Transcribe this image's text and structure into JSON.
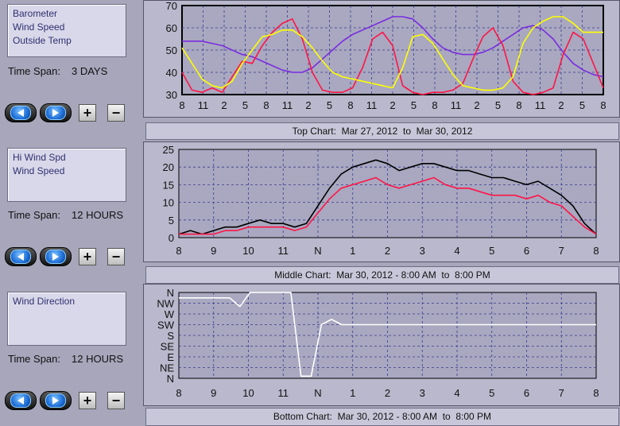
{
  "top": {
    "legend": [
      "Barometer",
      "Wind Speed",
      "Outside Temp"
    ],
    "timespan_label": "Time Span:",
    "timespan_value": "3 DAYS",
    "caption": "Top Chart:  Mar 27, 2012  to  Mar 30, 2012",
    "plus": "+",
    "minus": "−"
  },
  "middle": {
    "legend": [
      "Hi Wind Spd",
      "Wind Speed"
    ],
    "timespan_label": "Time Span:",
    "timespan_value": "12 HOURS",
    "caption": "Middle Chart:  Mar 30, 2012 - 8:00 AM  to  8:00 PM",
    "plus": "+",
    "minus": "−"
  },
  "bottom": {
    "legend": [
      "Wind Direction"
    ],
    "timespan_label": "Time Span:",
    "timespan_value": "12 HOURS",
    "caption": "Bottom Chart:  Mar 30, 2012 - 8:00 AM  to  8:00 PM",
    "plus": "+",
    "minus": "−"
  },
  "colors": {
    "barometer": "#7a2be0",
    "wind_speed": "#ff1446",
    "outside_temp": "#ffff00",
    "hi_wind": "#000000",
    "direction": "#ffffff",
    "plot_bg": "#a9a8c0",
    "grid": "#3a3a90"
  },
  "chart_data": [
    {
      "type": "line",
      "x_ticks": [
        "8",
        "11",
        "2",
        "5",
        "8",
        "11",
        "2",
        "5",
        "8",
        "11",
        "2",
        "5",
        "8",
        "11",
        "2",
        "5",
        "8",
        "11",
        "2",
        "5",
        "8"
      ],
      "y_ticks": [
        "30",
        "40",
        "50",
        "60",
        "70"
      ],
      "ylim": [
        30,
        70
      ],
      "grid": true,
      "series": [
        {
          "name": "Barometer",
          "color": "#7a2be0",
          "values": [
            54,
            54,
            54,
            53,
            52,
            50,
            48,
            47,
            45,
            43,
            41,
            40,
            40,
            42,
            46,
            50,
            54,
            57,
            59,
            61,
            63,
            65,
            65,
            64,
            60,
            55,
            51,
            49,
            48,
            48,
            49,
            51,
            54,
            57,
            60,
            61,
            59,
            55,
            49,
            44,
            41,
            39,
            38
          ]
        },
        {
          "name": "Wind Speed",
          "color": "#ff1446",
          "values": [
            40,
            32,
            31,
            33,
            31,
            38,
            45,
            44,
            52,
            58,
            62,
            64,
            55,
            40,
            32,
            31,
            31,
            33,
            42,
            55,
            58,
            52,
            34,
            31,
            30,
            31,
            31,
            32,
            35,
            46,
            56,
            60,
            52,
            36,
            31,
            30,
            31,
            33,
            48,
            58,
            55,
            44,
            33
          ]
        },
        {
          "name": "Outside Temp",
          "color": "#ffff00",
          "values": [
            51,
            44,
            37,
            34,
            33,
            36,
            44,
            50,
            56,
            57,
            59,
            59,
            56,
            51,
            45,
            40,
            38,
            37,
            36,
            35,
            34,
            33,
            42,
            56,
            57,
            53,
            46,
            39,
            34,
            33,
            32,
            32,
            33,
            38,
            53,
            60,
            63,
            65,
            65,
            62,
            58,
            58,
            58
          ]
        }
      ]
    },
    {
      "type": "line",
      "x_ticks": [
        "8",
        "9",
        "10",
        "11",
        "N",
        "1",
        "2",
        "3",
        "4",
        "5",
        "6",
        "7",
        "8"
      ],
      "y_ticks": [
        "0",
        "5",
        "10",
        "15",
        "20",
        "25"
      ],
      "ylim": [
        0,
        25
      ],
      "grid": true,
      "series": [
        {
          "name": "Hi Wind Spd",
          "color": "#000000",
          "values": [
            1,
            2,
            1,
            2,
            3,
            3,
            4,
            5,
            4,
            4,
            3,
            4,
            9,
            14,
            18,
            20,
            21,
            22,
            21,
            19,
            20,
            21,
            21,
            20,
            19,
            19,
            18,
            17,
            17,
            16,
            15,
            16,
            14,
            12,
            9,
            4,
            1
          ]
        },
        {
          "name": "Wind Speed",
          "color": "#ff1446",
          "values": [
            1,
            1,
            1,
            1,
            2,
            2,
            3,
            3,
            3,
            3,
            2,
            3,
            7,
            11,
            14,
            15,
            16,
            17,
            15,
            14,
            15,
            16,
            17,
            15,
            14,
            14,
            13,
            12,
            12,
            12,
            11,
            12,
            10,
            9,
            6,
            3,
            1
          ]
        }
      ]
    },
    {
      "type": "line",
      "x_ticks": [
        "8",
        "9",
        "10",
        "11",
        "N",
        "1",
        "2",
        "3",
        "4",
        "5",
        "6",
        "7",
        "8"
      ],
      "y_ticks": [
        "N",
        "NW",
        "W",
        "SW",
        "S",
        "SE",
        "E",
        "NE",
        "N"
      ],
      "grid": true,
      "series": [
        {
          "name": "Wind Direction",
          "color": "#ffffff",
          "values": [
            0.5,
            0.5,
            0.5,
            0.5,
            0.5,
            0.5,
            1.3,
            0,
            0,
            0,
            0,
            0,
            7.8,
            7.8,
            3,
            2.5,
            3,
            3,
            3,
            3,
            3,
            3,
            3,
            3,
            3,
            3,
            3,
            3,
            3,
            3,
            3,
            3,
            3,
            3,
            3,
            3,
            3,
            3,
            3,
            3,
            3,
            3
          ]
        }
      ]
    }
  ]
}
